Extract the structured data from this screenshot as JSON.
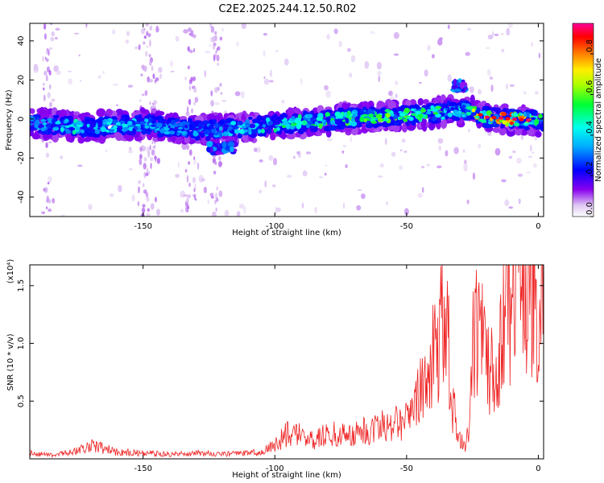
{
  "title": "C2E2.2025.244.12.50.R02",
  "chart_data": [
    {
      "type": "heatmap",
      "xlabel": "Height of straight line (km)",
      "ylabel": "Frequency (Hz)",
      "xlim": [
        -193,
        2
      ],
      "ylim": [
        -50,
        49
      ],
      "xticks": [
        -150,
        -100,
        -50,
        0
      ],
      "yticks": [
        -40,
        -20,
        0,
        20,
        40
      ],
      "colorbar": {
        "label": "Normalized spectral amplitude",
        "range": [
          0.0,
          0.95
        ],
        "ticks": [
          "0.0",
          "0.2",
          "0.4",
          "0.6",
          "0.8"
        ],
        "colors": [
          "#ffffff",
          "#cc99ee",
          "#7700ee",
          "#0000ff",
          "#00ccff",
          "#00ff66",
          "#ccff00",
          "#ffcc00",
          "#ff0000",
          "#ff00aa"
        ]
      },
      "main_band": {
        "x": [
          -193,
          -175,
          -150,
          -125,
          -100,
          -75,
          -50,
          -40,
          -30,
          -25,
          -20,
          -10,
          0
        ],
        "frequency_center": [
          -2,
          -4,
          -3,
          -6,
          -3,
          0,
          2,
          3,
          4,
          4,
          1,
          0,
          -1
        ],
        "peak_amplitude": [
          0.35,
          0.5,
          0.4,
          0.35,
          0.55,
          0.6,
          0.65,
          0.6,
          0.5,
          0.75,
          0.8,
          0.9,
          0.7
        ]
      },
      "secondary_features": [
        {
          "x": [
            -125,
            -115
          ],
          "frequency": -15,
          "peak_amplitude": 0.35
        },
        {
          "x": [
            -32,
            -28
          ],
          "frequency": 17,
          "peak_amplitude": 0.4
        }
      ]
    },
    {
      "type": "line",
      "xlabel": "Height of straight line (km)",
      "ylabel": "SNR (10 * v/v)",
      "yscale_label": "(x10⁴)",
      "xlim": [
        -193,
        2
      ],
      "ylim": [
        0,
        1.68
      ],
      "xticks": [
        -150,
        -100,
        -50,
        0
      ],
      "yticks": [
        0.5,
        1.0,
        1.5
      ],
      "color": "#ee2222",
      "series": [
        {
          "x": [
            -193,
            -185,
            -175,
            -170,
            -160,
            -150,
            -140,
            -130,
            -120,
            -110,
            -105,
            -100,
            -95,
            -90,
            -85,
            -80,
            -75,
            -70,
            -65,
            -60,
            -55,
            -50,
            -45,
            -42,
            -38,
            -35,
            -33,
            -30,
            -28,
            -26,
            -25,
            -22,
            -18,
            -15,
            -12,
            -10,
            -8,
            -5,
            -3,
            -1,
            0,
            1
          ],
          "values": [
            0.05,
            0.03,
            0.07,
            0.12,
            0.06,
            0.05,
            0.04,
            0.05,
            0.04,
            0.05,
            0.06,
            0.12,
            0.22,
            0.2,
            0.18,
            0.2,
            0.22,
            0.2,
            0.25,
            0.28,
            0.32,
            0.35,
            0.55,
            0.8,
            1.0,
            1.4,
            0.5,
            0.2,
            0.1,
            0.3,
            1.0,
            1.15,
            0.8,
            0.9,
            1.25,
            1.45,
            1.6,
            1.3,
            1.5,
            1.7,
            0.6,
            1.55
          ]
        }
      ]
    }
  ]
}
